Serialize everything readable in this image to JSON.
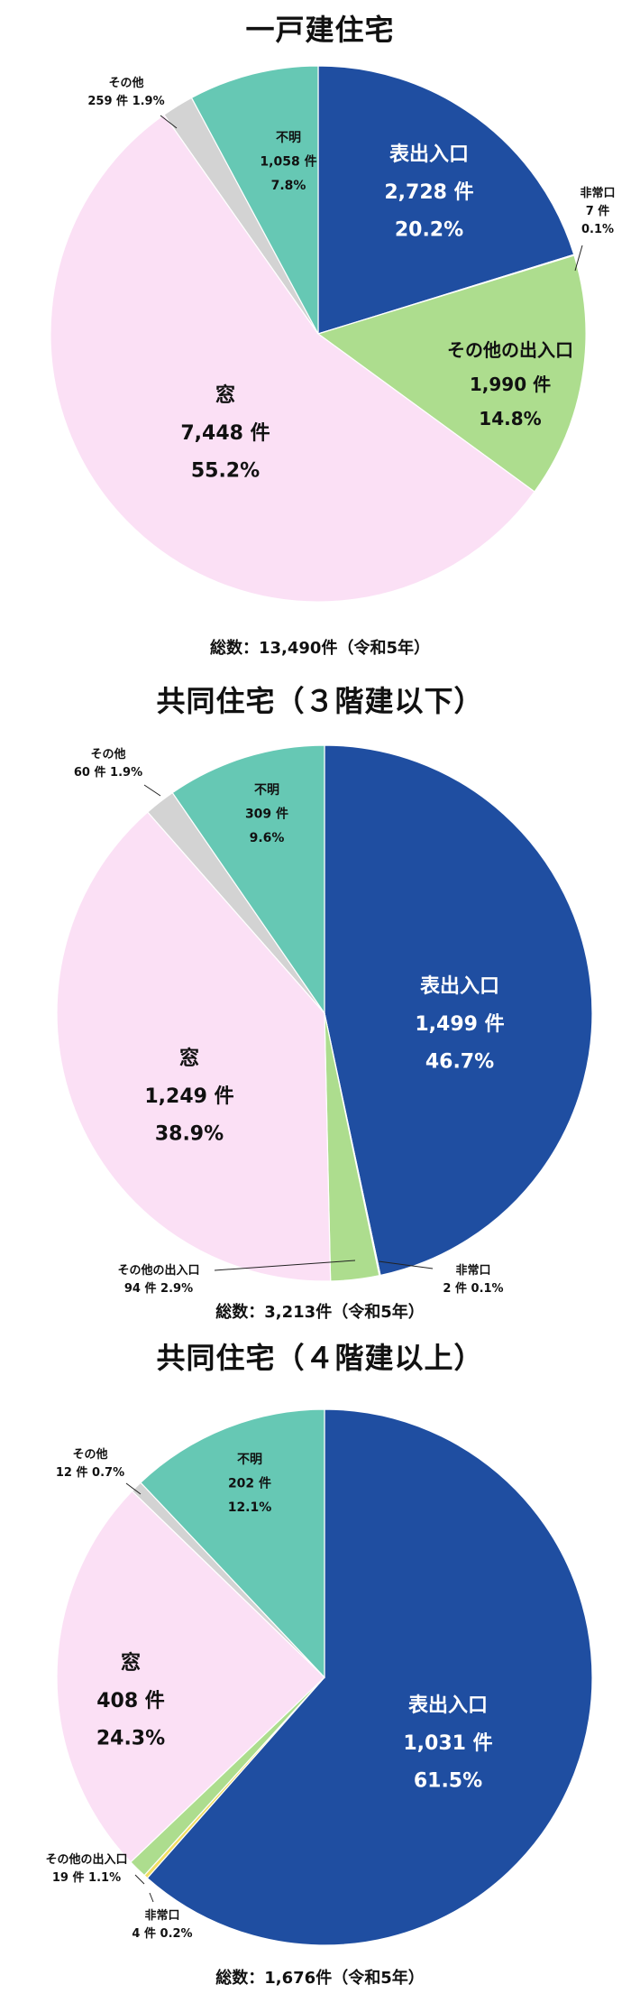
{
  "colors": {
    "表出入口": "#1f4ea1",
    "その他の出入口": "#addd8e",
    "窓": "#fbe0f5",
    "その他": "#d3d3d3",
    "不明": "#66c8b4",
    "非常口": "#f2de62"
  },
  "chart_data": [
    {
      "type": "pie",
      "title": "一戸建住宅",
      "total_label": "総数：13,490件（令和5年）",
      "slices": [
        {
          "label": "表出入口",
          "count": 2728,
          "count_text": "2,728 件",
          "percent": 20.2,
          "percent_text": "20.2%"
        },
        {
          "label": "非常口",
          "count": 7,
          "count_text": "7 件",
          "percent": 0.1,
          "percent_text": "0.1%"
        },
        {
          "label": "その他の出入口",
          "count": 1990,
          "count_text": "1,990 件",
          "percent": 14.8,
          "percent_text": "14.8%"
        },
        {
          "label": "窓",
          "count": 7448,
          "count_text": "7,448 件",
          "percent": 55.2,
          "percent_text": "55.2%"
        },
        {
          "label": "その他",
          "count": 259,
          "count_text": "259 件",
          "percent": 1.9,
          "percent_text": "1.9%"
        },
        {
          "label": "不明",
          "count": 1058,
          "count_text": "1,058 件",
          "percent": 7.8,
          "percent_text": "7.8%"
        }
      ]
    },
    {
      "type": "pie",
      "title": "共同住宅（３階建以下）",
      "total_label": "総数：3,213件（令和5年）",
      "slices": [
        {
          "label": "表出入口",
          "count": 1499,
          "count_text": "1,499 件",
          "percent": 46.7,
          "percent_text": "46.7%"
        },
        {
          "label": "非常口",
          "count": 2,
          "count_text": "2 件",
          "percent": 0.1,
          "percent_text": "0.1%"
        },
        {
          "label": "その他の出入口",
          "count": 94,
          "count_text": "94 件",
          "percent": 2.9,
          "percent_text": "2.9%"
        },
        {
          "label": "窓",
          "count": 1249,
          "count_text": "1,249 件",
          "percent": 38.9,
          "percent_text": "38.9%"
        },
        {
          "label": "その他",
          "count": 60,
          "count_text": "60 件",
          "percent": 1.9,
          "percent_text": "1.9%"
        },
        {
          "label": "不明",
          "count": 309,
          "count_text": "309 件",
          "percent": 9.6,
          "percent_text": "9.6%"
        }
      ]
    },
    {
      "type": "pie",
      "title": "共同住宅（４階建以上）",
      "total_label": "総数：1,676件（令和5年）",
      "slices": [
        {
          "label": "表出入口",
          "count": 1031,
          "count_text": "1,031 件",
          "percent": 61.5,
          "percent_text": "61.5%"
        },
        {
          "label": "非常口",
          "count": 4,
          "count_text": "4 件",
          "percent": 0.2,
          "percent_text": "0.2%"
        },
        {
          "label": "その他の出入口",
          "count": 19,
          "count_text": "19 件",
          "percent": 1.1,
          "percent_text": "1.1%"
        },
        {
          "label": "窓",
          "count": 408,
          "count_text": "408 件",
          "percent": 24.3,
          "percent_text": "24.3%"
        },
        {
          "label": "その他",
          "count": 12,
          "count_text": "12 件",
          "percent": 0.7,
          "percent_text": "0.7%"
        },
        {
          "label": "不明",
          "count": 202,
          "count_text": "202 件",
          "percent": 12.1,
          "percent_text": "12.1%"
        }
      ]
    }
  ]
}
